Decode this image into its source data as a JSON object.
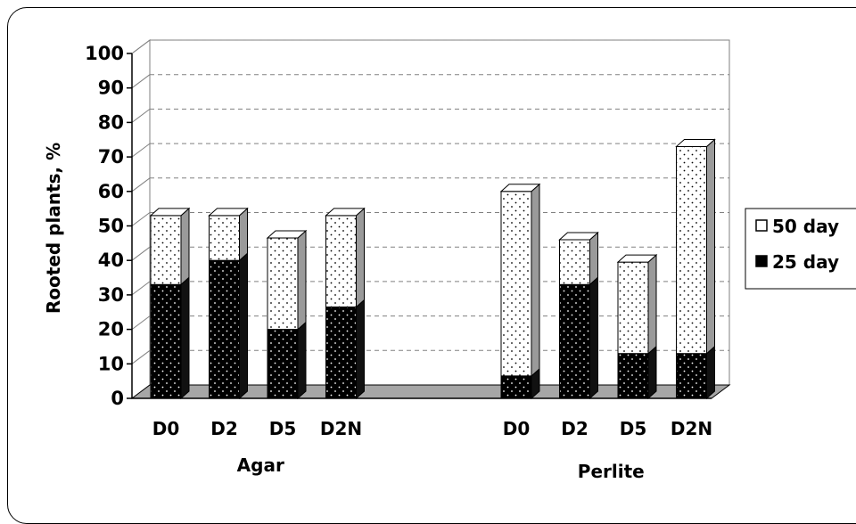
{
  "chart_data": {
    "type": "bar",
    "stacked": true,
    "style": "3d",
    "ylabel": "Rooted plants, %",
    "ylim": [
      0,
      100
    ],
    "yticks": [
      0,
      10,
      20,
      30,
      40,
      50,
      60,
      70,
      80,
      90,
      100
    ],
    "grid": true,
    "legend_position": "right",
    "groups": [
      {
        "name": "Agar",
        "categories": [
          "D0",
          "D2",
          "D5",
          "D2N"
        ]
      },
      {
        "name": "Perlite",
        "categories": [
          "D0",
          "D2",
          "D5",
          "D2N"
        ]
      }
    ],
    "series": [
      {
        "name": "25 day",
        "color": "#000000",
        "pattern": "dark-dotted",
        "values": [
          33,
          40,
          20,
          26.5,
          6.5,
          33,
          13,
          13
        ]
      },
      {
        "name": "50 day",
        "color": "#ffffff",
        "pattern": "light-dotted",
        "values": [
          20,
          13,
          26.5,
          26.5,
          53.5,
          13,
          26.5,
          60
        ]
      }
    ],
    "legend_order": [
      "50 day",
      "25 day"
    ]
  }
}
